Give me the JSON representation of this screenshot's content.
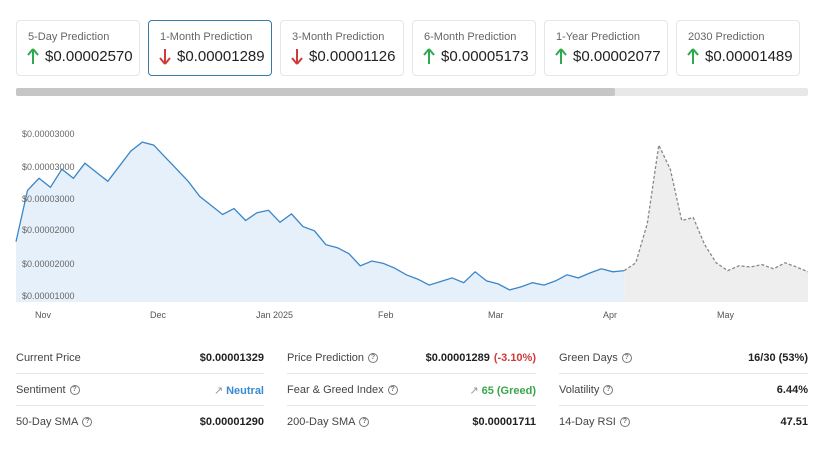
{
  "predictions": [
    {
      "label": "5-Day Prediction",
      "value": "$0.00002570",
      "direction": "up"
    },
    {
      "label": "1-Month Prediction",
      "value": "$0.00001289",
      "direction": "down"
    },
    {
      "label": "3-Month Prediction",
      "value": "$0.00001126",
      "direction": "down"
    },
    {
      "label": "6-Month Prediction",
      "value": "$0.00005173",
      "direction": "up"
    },
    {
      "label": "1-Year Prediction",
      "value": "$0.00002077",
      "direction": "up"
    },
    {
      "label": "2030 Prediction",
      "value": "$0.00001489",
      "direction": "up"
    }
  ],
  "colors": {
    "up": "#2fa84f",
    "down": "#d03a3a",
    "line": "#3a86c8",
    "area": "#e6f0fa",
    "forecast": "#888888",
    "forecast_area": "#eeeeee",
    "active_border": "#3a7ba8"
  },
  "chart_data": {
    "type": "line",
    "y_tick_labels": [
      "$0.00003000",
      "$0.00003000",
      "$0.00003000",
      "$0.00002000",
      "$0.00002000",
      "$0.00001000"
    ],
    "x_tick_labels": [
      "Nov",
      "Dec",
      "Jan 2025",
      "Feb",
      "Mar",
      "Apr",
      "May"
    ],
    "ylim": [
      8e-06,
      3.65e-05
    ],
    "history": {
      "name": "Price",
      "values": [
        1.8e-05,
        2.65e-05,
        2.85e-05,
        2.7e-05,
        3e-05,
        2.85e-05,
        3.1e-05,
        2.95e-05,
        2.8e-05,
        3.05e-05,
        3.3e-05,
        3.45e-05,
        3.4e-05,
        3.2e-05,
        3e-05,
        2.8e-05,
        2.55e-05,
        2.4e-05,
        2.25e-05,
        2.35e-05,
        2.15e-05,
        2.28e-05,
        2.32e-05,
        2.12e-05,
        2.26e-05,
        2.05e-05,
        1.98e-05,
        1.75e-05,
        1.7e-05,
        1.6e-05,
        1.4e-05,
        1.48e-05,
        1.44e-05,
        1.36e-05,
        1.25e-05,
        1.18e-05,
        1.08e-05,
        1.14e-05,
        1.2e-05,
        1.12e-05,
        1.3e-05,
        1.15e-05,
        1.1e-05,
        1e-05,
        1.05e-05,
        1.12e-05,
        1.08e-05,
        1.15e-05,
        1.25e-05,
        1.2e-05,
        1.28e-05,
        1.35e-05,
        1.3e-05,
        1.32e-05
      ]
    },
    "forecast": {
      "name": "Prediction",
      "values": [
        1.32e-05,
        1.45e-05,
        2.1e-05,
        3.4e-05,
        3e-05,
        2.15e-05,
        2.2e-05,
        1.75e-05,
        1.45e-05,
        1.32e-05,
        1.4e-05,
        1.38e-05,
        1.42e-05,
        1.35e-05,
        1.45e-05,
        1.38e-05,
        1.3e-05
      ]
    }
  },
  "stats": {
    "col1": [
      {
        "label": "Current Price",
        "value": "$0.00001329",
        "info": false
      },
      {
        "label": "Sentiment",
        "value": "Neutral",
        "info": true,
        "link": true,
        "color": "blue"
      },
      {
        "label": "50-Day SMA",
        "value": "$0.00001290",
        "info": true
      }
    ],
    "col2": [
      {
        "label": "Price Prediction",
        "value": "$0.00001289",
        "change": "(-3.10%)",
        "info": true
      },
      {
        "label": "Fear & Greed Index",
        "value": "65 (Greed)",
        "info": true,
        "link": true,
        "color": "green"
      },
      {
        "label": "200-Day SMA",
        "value": "$0.00001711",
        "info": true
      }
    ],
    "col3": [
      {
        "label": "Green Days",
        "value": "16/30 (53%)",
        "info": true
      },
      {
        "label": "Volatility",
        "value": "6.44%",
        "info": true
      },
      {
        "label": "14-Day RSI",
        "value": "47.51",
        "info": true
      }
    ]
  },
  "info_glyph": "?",
  "link_glyph": "🔗"
}
